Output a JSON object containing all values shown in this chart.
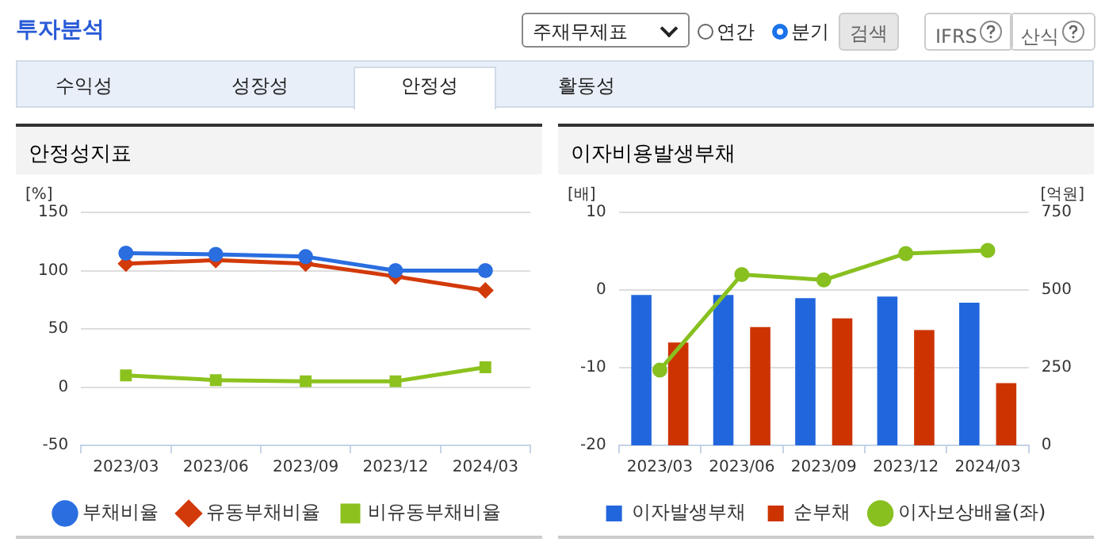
{
  "chart_data": [
    {
      "type": "other",
      "annotations": [
        "투자분석",
        "주재무제표",
        "연간",
        "분기",
        "검색",
        "IFRS",
        "산식",
        "수익성",
        "성장성",
        "안정성",
        "활동성"
      ]
    },
    {
      "type": "line",
      "title": "안정성지표",
      "ylabel": "[%]",
      "categories": [
        "2023/03",
        "2023/06",
        "2023/09",
        "2023/12",
        "2024/03"
      ],
      "ylim": [
        -50,
        150
      ],
      "yticks": [
        -50,
        0,
        50,
        100,
        150
      ],
      "grid": "y",
      "legend": "bottom",
      "series": [
        {
          "name": "부채비율",
          "color": "#2a6ee0",
          "marker": "circle",
          "values": [
            115,
            114,
            112,
            100,
            100
          ]
        },
        {
          "name": "유동부채비율",
          "color": "#d23a0a",
          "marker": "diamond",
          "values": [
            106,
            109,
            106,
            95,
            83
          ]
        },
        {
          "name": "비유동부채비율",
          "color": "#8cc21e",
          "marker": "square",
          "values": [
            10,
            6,
            5,
            5,
            17
          ]
        }
      ]
    },
    {
      "type": "bar",
      "title": "이자비용발생부채",
      "ylabel": "[배]",
      "y2label": "[억원]",
      "categories": [
        "2023/03",
        "2023/06",
        "2023/09",
        "2023/12",
        "2024/03"
      ],
      "ylim": [
        -20,
        10
      ],
      "yticks": [
        -20,
        -10,
        0,
        10
      ],
      "y2lim": [
        0,
        750
      ],
      "y2ticks": [
        0,
        250,
        500,
        750
      ],
      "grid": "y",
      "legend": "bottom",
      "series": [
        {
          "name": "이자발생부채",
          "color": "#2266dd",
          "axis": "y2",
          "values": [
            484,
            484,
            474,
            479,
            459
          ]
        },
        {
          "name": "순부채",
          "color": "#cc3300",
          "axis": "y2",
          "values": [
            331,
            381,
            409,
            371,
            200
          ]
        },
        {
          "name": "이자보상배율(좌)",
          "type": "line",
          "color": "#88c020",
          "marker": "circle",
          "axis": "y",
          "values": [
            -10.3,
            2,
            1.3,
            4.7,
            5.1
          ]
        }
      ]
    }
  ]
}
